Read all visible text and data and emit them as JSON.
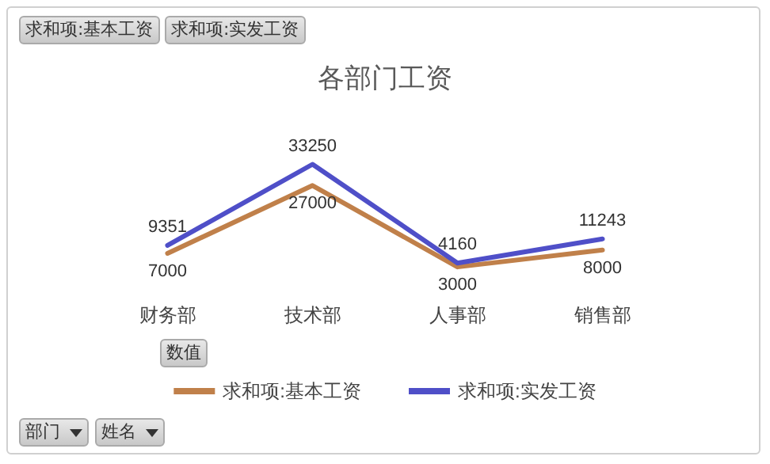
{
  "chart_data": {
    "type": "line",
    "title": "各部门工资",
    "categories": [
      "财务部",
      "技术部",
      "人事部",
      "销售部"
    ],
    "series": [
      {
        "name": "求和项:基本工资",
        "color": "#c0804a",
        "values": [
          7000,
          27000,
          3000,
          8000
        ]
      },
      {
        "name": "求和项:实发工资",
        "color": "#4f4fc8",
        "values": [
          9351,
          33250,
          4160,
          11243
        ]
      }
    ],
    "data_labels": true,
    "legend": "bottom",
    "line_style": "solid",
    "annotations": [
      "求和项:基本工资",
      "求和项:实发工资",
      "数值",
      "部门",
      "姓名"
    ]
  }
}
